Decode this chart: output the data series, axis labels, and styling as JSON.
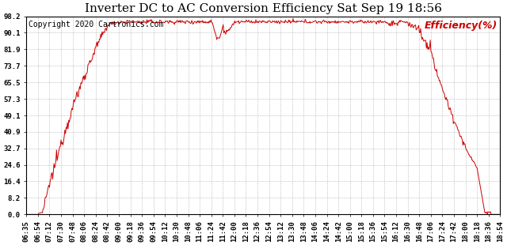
{
  "title": "Inverter DC to AC Conversion Efficiency Sat Sep 19 18:56",
  "copyright": "Copyright 2020 Cartronics.com",
  "legend_label": "Efficiency(%)",
  "line_color": "#cc0000",
  "background_color": "#ffffff",
  "grid_color": "#aaaaaa",
  "yticks": [
    0.0,
    8.2,
    16.4,
    24.6,
    32.7,
    40.9,
    49.1,
    57.3,
    65.5,
    73.7,
    81.9,
    90.1,
    98.2
  ],
  "ymin": 0.0,
  "ymax": 98.2,
  "xtick_labels": [
    "06:35",
    "06:54",
    "07:12",
    "07:30",
    "07:48",
    "08:06",
    "08:24",
    "08:42",
    "09:00",
    "09:18",
    "09:36",
    "09:54",
    "10:12",
    "10:30",
    "10:48",
    "11:06",
    "11:24",
    "11:42",
    "12:00",
    "12:18",
    "12:36",
    "12:54",
    "13:12",
    "13:30",
    "13:48",
    "14:06",
    "14:24",
    "14:42",
    "15:00",
    "15:18",
    "15:36",
    "15:54",
    "16:12",
    "16:30",
    "16:48",
    "17:06",
    "17:24",
    "17:42",
    "18:00",
    "18:18",
    "18:36",
    "18:54"
  ],
  "title_fontsize": 11,
  "copyright_fontsize": 7,
  "legend_fontsize": 9,
  "tick_fontsize": 6.5
}
